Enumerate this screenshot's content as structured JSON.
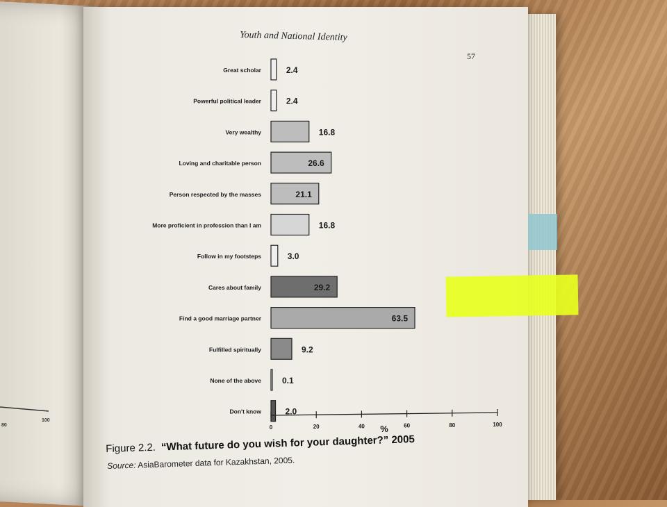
{
  "book": {
    "running_head": "Youth and National Identity",
    "page_number": "57"
  },
  "chart_data": {
    "type": "bar",
    "orientation": "horizontal",
    "categories": [
      "Great scholar",
      "Powerful political leader",
      "Very wealthy",
      "Loving and charitable person",
      "Person respected by the masses",
      "More proficient in profession than I am",
      "Follow in my footsteps",
      "Cares about family",
      "Find a good marriage partner",
      "Fulfilled spiritually",
      "None of the above",
      "Don't know"
    ],
    "values": [
      2.4,
      2.4,
      16.8,
      26.6,
      21.1,
      16.8,
      3.0,
      29.2,
      63.5,
      9.2,
      0.1,
      2.0
    ],
    "value_labels": [
      "2.4",
      "2.4",
      "16.8",
      "26.6",
      "21.1",
      "16.8",
      "3.0",
      "29.2",
      "63.5",
      "9.2",
      "0.1",
      "2.0"
    ],
    "label_inside": [
      false,
      false,
      false,
      true,
      true,
      false,
      false,
      true,
      true,
      false,
      false,
      false
    ],
    "bar_colors": [
      "#efefef",
      "#efefef",
      "#bdbdbd",
      "#bdbdbd",
      "#bdbdbd",
      "#d6d6d6",
      "#efefef",
      "#6e6e6e",
      "#aaaaaa",
      "#8a8a8a",
      "#efefef",
      "#555555"
    ],
    "xlim": [
      0,
      100
    ],
    "xticks": [
      "0",
      "20",
      "40",
      "60",
      "80",
      "100"
    ],
    "xlabel": "%",
    "grid": false
  },
  "figure": {
    "number": "Figure 2.2.",
    "title": "“What future do you wish for your daughter?” 2005",
    "source_label": "Source:",
    "source_text": "AsiaBarometer data for Kazakhstan, 2005."
  },
  "left_page_ticks": [
    "80",
    "100"
  ]
}
